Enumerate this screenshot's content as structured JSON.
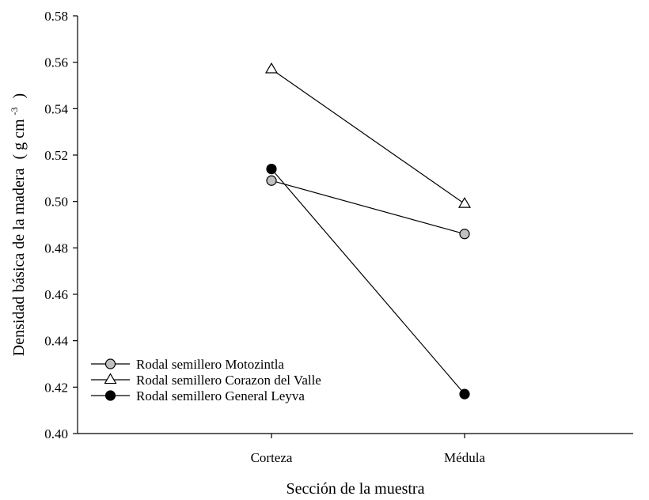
{
  "chart_data": {
    "type": "line",
    "title": "",
    "xlabel": "Sección de la muestra",
    "ylabel": {
      "text": "Densidad básica de la madera",
      "unit_open": "( g cm",
      "unit_exponent": "-3",
      "unit_close": ")"
    },
    "categories": [
      "Corteza",
      "Médula"
    ],
    "ylim": [
      0.4,
      0.58
    ],
    "yticks": [
      "0.40",
      "0.42",
      "0.44",
      "0.46",
      "0.48",
      "0.50",
      "0.52",
      "0.54",
      "0.56",
      "0.58"
    ],
    "grid": false,
    "legend_position": "bottom-left",
    "series": [
      {
        "name": "Rodal semillero Motozintla",
        "values": [
          0.509,
          0.486
        ],
        "marker": "circle",
        "fill": "#c0c0c0"
      },
      {
        "name": "Rodal semillero Corazon del Valle",
        "values": [
          0.557,
          0.499
        ],
        "marker": "triangle",
        "fill": "#ffffff"
      },
      {
        "name": "Rodal semillero General Leyva",
        "values": [
          0.514,
          0.417
        ],
        "marker": "circle",
        "fill": "#000000"
      }
    ]
  }
}
